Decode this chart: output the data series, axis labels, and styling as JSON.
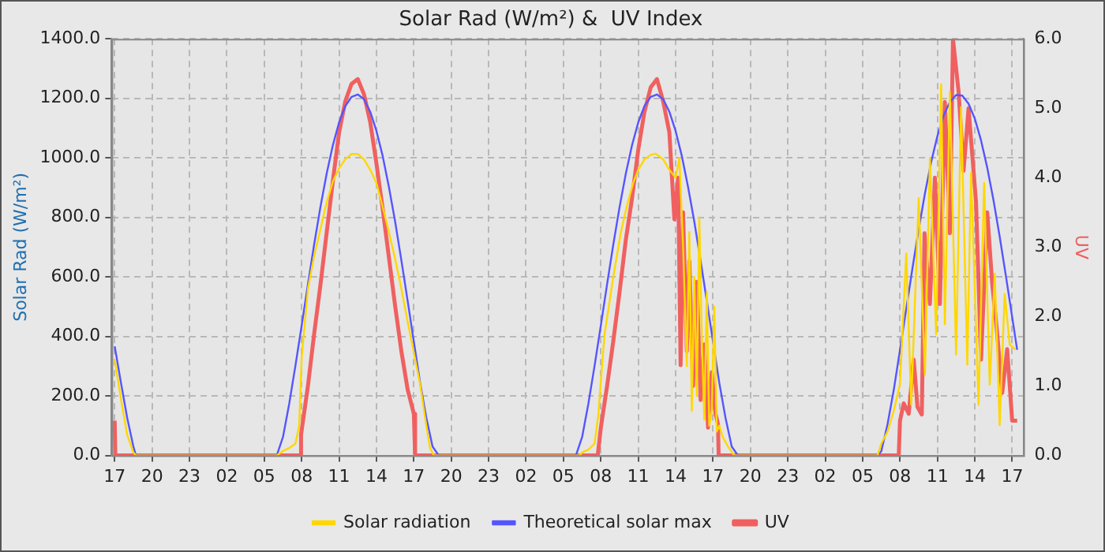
{
  "chart_data": {
    "type": "line",
    "title": "Solar Rad (W/m²) &  UV Index",
    "ylabel": "Solar Rad (W/m²)",
    "y2label": "UV",
    "xlim": [
      "--01-01T16:45",
      "--01-04T17:54"
    ],
    "xticks": [
      {
        "value": "--01-01T17:00",
        "label": "17"
      },
      {
        "value": "--01-01T20:00",
        "label": "20"
      },
      {
        "value": "--01-01T23:00",
        "label": "23"
      },
      {
        "value": "--01-02T02:00",
        "label": "02"
      },
      {
        "value": "--01-02T05:00",
        "label": "05"
      },
      {
        "value": "--01-02T08:00",
        "label": "08"
      },
      {
        "value": "--01-02T11:00",
        "label": "11"
      },
      {
        "value": "--01-02T14:00",
        "label": "14"
      },
      {
        "value": "--01-02T17:00",
        "label": "17"
      },
      {
        "value": "--01-02T20:00",
        "label": "20"
      },
      {
        "value": "--01-02T23:00",
        "label": "23"
      },
      {
        "value": "--01-03T02:00",
        "label": "02"
      },
      {
        "value": "--01-03T05:00",
        "label": "05"
      },
      {
        "value": "--01-03T08:00",
        "label": "08"
      },
      {
        "value": "--01-03T11:00",
        "label": "11"
      },
      {
        "value": "--01-03T14:00",
        "label": "14"
      },
      {
        "value": "--01-03T17:00",
        "label": "17"
      },
      {
        "value": "--01-03T20:00",
        "label": "20"
      },
      {
        "value": "--01-03T23:00",
        "label": "23"
      },
      {
        "value": "--01-04T02:00",
        "label": "02"
      },
      {
        "value": "--01-04T05:00",
        "label": "05"
      },
      {
        "value": "--01-04T08:00",
        "label": "08"
      },
      {
        "value": "--01-04T11:00",
        "label": "11"
      },
      {
        "value": "--01-04T14:00",
        "label": "14"
      },
      {
        "value": "--01-04T17:00",
        "label": "17"
      }
    ],
    "ylim": [
      0,
      1400
    ],
    "yticks": [
      {
        "value": 0,
        "label": "0.0"
      },
      {
        "value": 200,
        "label": "200.0"
      },
      {
        "value": 400,
        "label": "400.0"
      },
      {
        "value": 600,
        "label": "600.0"
      },
      {
        "value": 800,
        "label": "800.0"
      },
      {
        "value": 1000,
        "label": "1000.0"
      },
      {
        "value": 1200,
        "label": "1200.0"
      },
      {
        "value": 1400,
        "label": "1400.0"
      }
    ],
    "y2lim": [
      0,
      6
    ],
    "y2ticks": [
      {
        "value": 0,
        "label": "0.0"
      },
      {
        "value": 1,
        "label": "1.0"
      },
      {
        "value": 2,
        "label": "2.0"
      },
      {
        "value": 3,
        "label": "3.0"
      },
      {
        "value": 4,
        "label": "4.0"
      },
      {
        "value": 5,
        "label": "5.0"
      },
      {
        "value": 6,
        "label": "6.0"
      }
    ],
    "grid": true,
    "legend": "bottom",
    "marker": "none",
    "line_style": "solid",
    "series": [
      {
        "name": "Solar radiation",
        "color": "#ffd700",
        "x": [
          "--01-01T17:00",
          "--01-01T17:30",
          "--01-01T18:00",
          "--01-01T18:30",
          "--01-01T18:42",
          "--01-02T06:00",
          "--01-02T06:30",
          "--01-02T07:00",
          "--01-02T07:30",
          "--01-02T07:48",
          "--01-02T08:00",
          "--01-02T08:30",
          "--01-02T09:00",
          "--01-02T09:30",
          "--01-02T10:00",
          "--01-02T10:30",
          "--01-02T11:00",
          "--01-02T11:30",
          "--01-02T12:00",
          "--01-02T12:30",
          "--01-02T13:00",
          "--01-02T13:30",
          "--01-02T14:00",
          "--01-02T14:30",
          "--01-02T15:00",
          "--01-02T15:30",
          "--01-02T16:00",
          "--01-02T16:30",
          "--01-02T17:00",
          "--01-02T17:30",
          "--01-02T18:00",
          "--01-02T18:18",
          "--01-02T18:36",
          "--01-03T06:18",
          "--01-03T06:30",
          "--01-03T07:00",
          "--01-03T07:30",
          "--01-03T07:48",
          "--01-03T08:00",
          "--01-03T08:18",
          "--01-03T09:00",
          "--01-03T09:36",
          "--01-03T10:06",
          "--01-03T10:36",
          "--01-03T11:00",
          "--01-03T11:30",
          "--01-03T12:00",
          "--01-03T12:24",
          "--01-03T13:00",
          "--01-03T13:30",
          "--01-03T14:00",
          "--01-03T14:18",
          "--01-03T14:36",
          "--01-03T14:54",
          "--01-03T15:06",
          "--01-03T15:18",
          "--01-03T15:30",
          "--01-03T15:42",
          "--01-03T15:54",
          "--01-03T16:06",
          "--01-03T16:18",
          "--01-03T16:30",
          "--01-03T16:42",
          "--01-03T16:54",
          "--01-03T17:06",
          "--01-03T17:18",
          "--01-03T17:30",
          "--01-03T17:48",
          "--01-03T18:12",
          "--01-03T18:42",
          "--01-04T06:12",
          "--01-04T06:30",
          "--01-04T07:00",
          "--01-04T07:30",
          "--01-04T08:00",
          "--01-04T08:30",
          "--01-04T08:54",
          "--01-04T09:30",
          "--01-04T10:00",
          "--01-04T10:24",
          "--01-04T10:54",
          "--01-04T11:18",
          "--01-04T11:36",
          "--01-04T12:00",
          "--01-04T12:30",
          "--01-04T12:54",
          "--01-04T13:24",
          "--01-04T13:42",
          "--01-04T14:18",
          "--01-04T14:45",
          "--01-04T15:12",
          "--01-04T15:36",
          "--01-04T16:00",
          "--01-04T16:24",
          "--01-04T16:48",
          "--01-04T17:15"
        ],
        "values": [
          322,
          190,
          70,
          10,
          0,
          0,
          15,
          25,
          40,
          100,
          330,
          560,
          670,
          760,
          850,
          920,
          965,
          995,
          1013,
          1013,
          995,
          960,
          915,
          835,
          750,
          660,
          560,
          450,
          345,
          240,
          100,
          25,
          0,
          0,
          10,
          20,
          40,
          137,
          250,
          407,
          600,
          748,
          840,
          916,
          960,
          995,
          1010,
          1014,
          995,
          960,
          933,
          1000,
          700,
          300,
          750,
          150,
          600,
          200,
          800,
          400,
          120,
          550,
          100,
          150,
          500,
          80,
          100,
          60,
          30,
          0,
          0,
          40,
          80,
          150,
          240,
          679,
          170,
          865,
          271,
          1000,
          407,
          1247,
          441,
          1222,
          339,
          1171,
          305,
          950,
          170,
          916,
          238,
          611,
          102,
          543,
          373,
          356
        ]
      },
      {
        "name": "Theoretical solar max",
        "color": "#5555ff",
        "x": [
          "--01-01T17:00",
          "--01-01T17:30",
          "--01-01T18:00",
          "--01-01T18:30",
          "--01-01T18:42",
          "--01-02T06:00",
          "--01-02T06:30",
          "--01-02T07:00",
          "--01-02T07:30",
          "--01-02T08:00",
          "--01-02T08:30",
          "--01-02T09:00",
          "--01-02T09:30",
          "--01-02T10:00",
          "--01-02T10:30",
          "--01-02T11:00",
          "--01-02T11:30",
          "--01-02T12:00",
          "--01-02T12:30",
          "--01-02T13:00",
          "--01-02T13:30",
          "--01-02T14:00",
          "--01-02T14:30",
          "--01-02T15:00",
          "--01-02T15:30",
          "--01-02T16:00",
          "--01-02T16:30",
          "--01-02T17:00",
          "--01-02T17:30",
          "--01-02T18:00",
          "--01-02T18:30",
          "--01-02T19:00",
          "--01-03T06:00",
          "--01-03T06:30",
          "--01-03T07:00",
          "--01-03T07:30",
          "--01-03T08:00",
          "--01-03T08:30",
          "--01-03T09:00",
          "--01-03T09:30",
          "--01-03T10:00",
          "--01-03T10:30",
          "--01-03T11:00",
          "--01-03T11:30",
          "--01-03T12:00",
          "--01-03T12:30",
          "--01-03T13:00",
          "--01-03T13:30",
          "--01-03T14:00",
          "--01-03T14:30",
          "--01-03T15:00",
          "--01-03T15:30",
          "--01-03T16:00",
          "--01-03T16:30",
          "--01-03T17:00",
          "--01-03T17:30",
          "--01-03T18:00",
          "--01-03T18:30",
          "--01-03T19:00",
          "--01-04T06:12",
          "--01-04T06:30",
          "--01-04T07:00",
          "--01-04T07:30",
          "--01-04T08:00",
          "--01-04T08:30",
          "--01-04T09:00",
          "--01-04T09:30",
          "--01-04T10:00",
          "--01-04T10:30",
          "--01-04T11:00",
          "--01-04T11:30",
          "--01-04T12:00",
          "--01-04T12:30",
          "--01-04T13:00",
          "--01-04T13:30",
          "--01-04T14:00",
          "--01-04T14:30",
          "--01-04T15:00",
          "--01-04T15:30",
          "--01-04T16:00",
          "--01-04T16:30",
          "--01-04T17:00",
          "--01-04T17:24"
        ],
        "values": [
          367,
          245,
          127,
          30,
          0,
          0,
          62,
          174,
          302,
          437,
          575,
          709,
          834,
          946,
          1042,
          1119,
          1174,
          1205,
          1213,
          1197,
          1155,
          1090,
          1006,
          902,
          785,
          655,
          520,
          382,
          245,
          127,
          30,
          0,
          0,
          62,
          174,
          302,
          437,
          575,
          709,
          834,
          946,
          1042,
          1119,
          1174,
          1205,
          1213,
          1197,
          1155,
          1090,
          1006,
          902,
          785,
          655,
          520,
          382,
          245,
          127,
          30,
          0,
          0,
          14,
          105,
          220,
          355,
          492,
          629,
          760,
          880,
          986,
          1073,
          1142,
          1188,
          1211,
          1209,
          1182,
          1132,
          1059,
          967,
          858,
          735,
          602,
          465,
          355
        ]
      },
      {
        "name": "UV",
        "color": "#f06060",
        "axis": "y2",
        "x": [
          "--01-01T17:00",
          "--01-01T17:03",
          "--01-02T07:54",
          "--01-02T07:57",
          "--01-02T08:30",
          "--01-02T09:00",
          "--01-02T09:30",
          "--01-02T10:00",
          "--01-02T10:30",
          "--01-02T11:00",
          "--01-02T11:30",
          "--01-02T12:00",
          "--01-02T12:30",
          "--01-02T13:00",
          "--01-02T13:30",
          "--01-02T14:00",
          "--01-02T14:30",
          "--01-02T15:00",
          "--01-02T15:30",
          "--01-02T16:00",
          "--01-02T16:30",
          "--01-02T17:00",
          "--01-02T17:06",
          "--01-03T07:45",
          "--01-03T08:00",
          "--01-03T08:30",
          "--01-03T09:00",
          "--01-03T09:30",
          "--01-03T10:00",
          "--01-03T10:30",
          "--01-03T11:00",
          "--01-03T11:30",
          "--01-03T12:00",
          "--01-03T12:30",
          "--01-03T13:00",
          "--01-03T13:30",
          "--01-03T13:54",
          "--01-03T14:12",
          "--01-03T14:24",
          "--01-03T14:36",
          "--01-03T14:54",
          "--01-03T15:06",
          "--01-03T15:24",
          "--01-03T15:42",
          "--01-03T16:00",
          "--01-03T16:18",
          "--01-03T16:36",
          "--01-03T16:54",
          "--01-03T17:12",
          "--01-03T17:24",
          "--01-03T17:27",
          "--01-04T07:54",
          "--01-04T08:00",
          "--01-04T08:18",
          "--01-04T08:42",
          "--01-04T09:06",
          "--01-04T09:24",
          "--01-04T09:45",
          "--01-04T09:58",
          "--01-04T10:24",
          "--01-04T10:48",
          "--01-04T11:12",
          "--01-04T11:36",
          "--01-04T12:00",
          "--01-04T12:15",
          "--01-04T12:42",
          "--01-04T13:06",
          "--01-04T13:30",
          "--01-04T14:06",
          "--01-04T14:30",
          "--01-04T15:00",
          "--01-04T15:24",
          "--01-04T15:48",
          "--01-04T16:12",
          "--01-04T16:36",
          "--01-04T17:00",
          "--01-04T17:24"
        ],
        "values": [
          0.5,
          0,
          0,
          0.3,
          1.0,
          1.75,
          2.45,
          3.2,
          3.95,
          4.65,
          5.1,
          5.35,
          5.42,
          5.2,
          4.8,
          4.2,
          3.55,
          2.85,
          2.15,
          1.5,
          0.95,
          0.6,
          0,
          0,
          0.4,
          1.0,
          1.65,
          2.35,
          3.1,
          3.7,
          4.4,
          4.95,
          5.3,
          5.42,
          5.1,
          4.65,
          3.4,
          4.0,
          1.3,
          3.5,
          1.5,
          2.8,
          1.0,
          2.5,
          0.8,
          1.6,
          0.4,
          1.2,
          0.6,
          0.45,
          0,
          0,
          0.5,
          0.75,
          0.6,
          1.38,
          0.7,
          0.59,
          3.2,
          2.18,
          4.0,
          2.18,
          5.09,
          3.2,
          6.0,
          5.24,
          4.1,
          5.0,
          3.65,
          1.38,
          3.5,
          2.47,
          1.75,
          0.9,
          1.53,
          0.5,
          0.5
        ]
      }
    ]
  }
}
